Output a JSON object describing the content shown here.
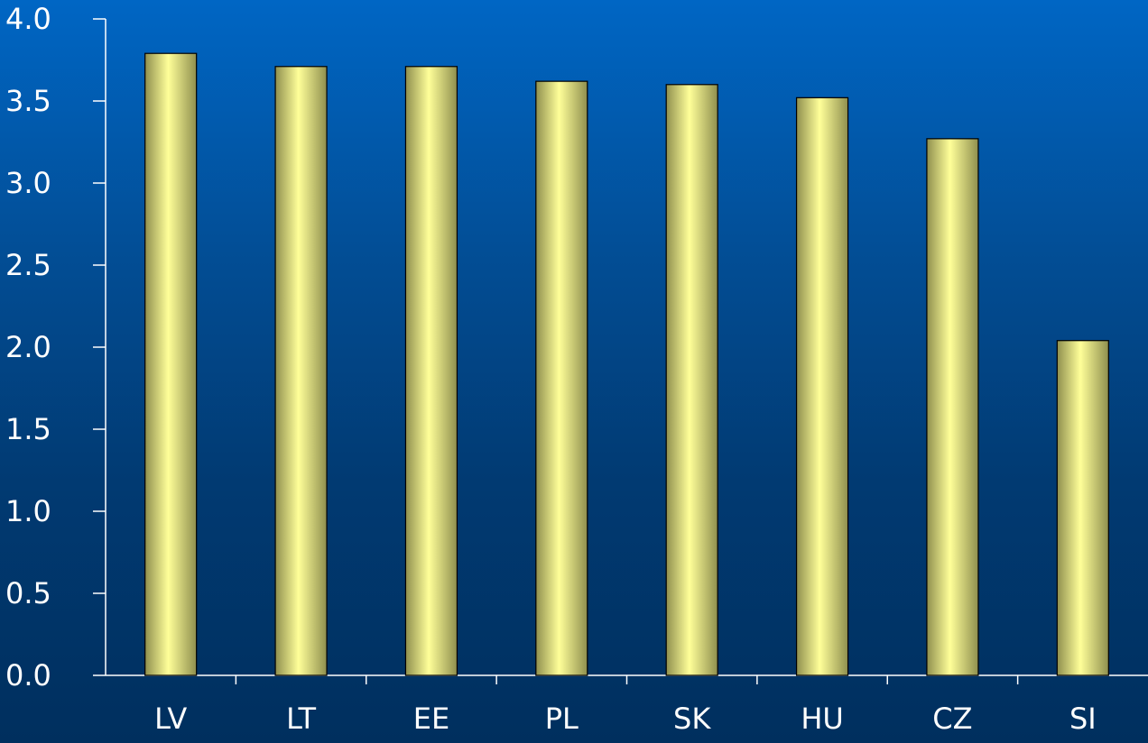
{
  "chart_data": {
    "type": "bar",
    "categories": [
      "LV",
      "LT",
      "EE",
      "PL",
      "SK",
      "HU",
      "CZ",
      "SI"
    ],
    "values": [
      3.79,
      3.71,
      3.71,
      3.62,
      3.6,
      3.52,
      3.27,
      2.04
    ],
    "title": "",
    "xlabel": "",
    "ylabel": "",
    "ylim": [
      0,
      4
    ],
    "yticks": [
      "0.0",
      "0.5",
      "1.0",
      "1.5",
      "2.0",
      "2.5",
      "3.0",
      "3.5",
      "4.0"
    ],
    "grid": false,
    "legend": "none",
    "colors": {
      "background_top": "#0066c4",
      "background_bottom": "#002f5e",
      "bar_light": "#ffff99",
      "bar_dark": "#8f8f4e",
      "axis": "#ffffff",
      "text": "#ffffff"
    }
  }
}
